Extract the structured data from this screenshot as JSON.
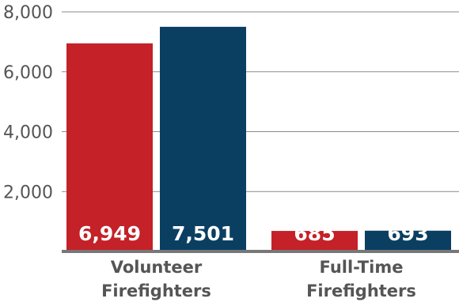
{
  "chart_data": {
    "type": "bar",
    "categories": [
      "Volunteer Firefighters",
      "Full-Time Firefighters"
    ],
    "category_lines": [
      [
        "Volunteer",
        "Firefighters"
      ],
      [
        "Full-Time",
        "Firefighters"
      ]
    ],
    "series": [
      {
        "values": [
          6949,
          685
        ],
        "labels": [
          "6,949",
          "685"
        ],
        "color": "#c42128"
      },
      {
        "values": [
          7501,
          693
        ],
        "labels": [
          "7,501",
          "693"
        ],
        "color": "#0b3f62"
      }
    ],
    "yticks": [
      "2,000",
      "4,000",
      "6,000",
      "8,000"
    ],
    "ytick_values": [
      2000,
      4000,
      6000,
      8000
    ],
    "ylim": [
      0,
      8000
    ],
    "grid": true,
    "title": "",
    "xlabel": "",
    "ylabel": ""
  }
}
